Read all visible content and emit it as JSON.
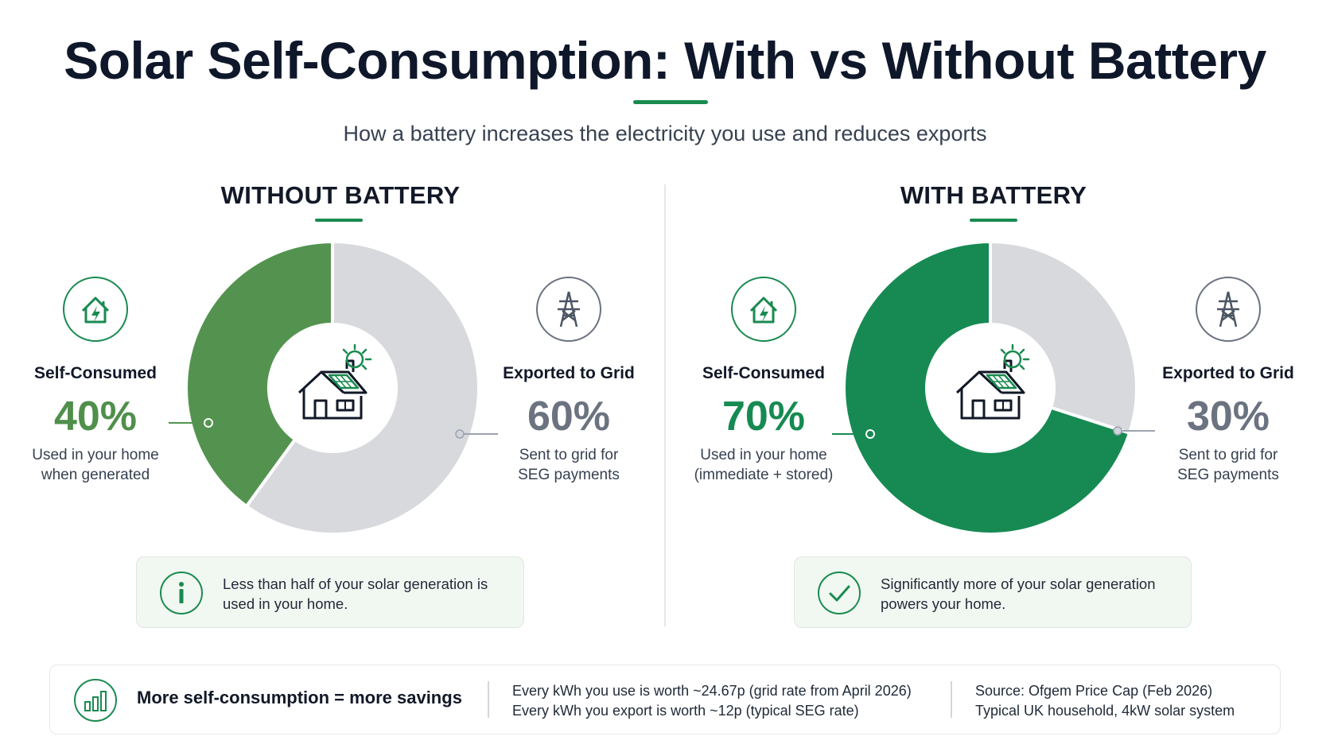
{
  "header": {
    "title": "Solar Self-Consumption: With vs Without Battery",
    "subtitle": "How a battery increases the electricity you use and reduces exports"
  },
  "colors": {
    "self_without": "#53934f",
    "self_with": "#168a52",
    "exported": "#d8d9dc",
    "accent": "#1a8a50",
    "callout_bg": "#f1f7f1"
  },
  "panels": [
    {
      "title": "WITHOUT BATTERY",
      "self_consumed": {
        "label": "Self-Consumed",
        "value": "40%",
        "desc_line1": "Used in your home",
        "desc_line2": "when generated",
        "icon": "house-lightning-icon"
      },
      "exported": {
        "label": "Exported to Grid",
        "value": "60%",
        "desc_line1": "Sent to grid for",
        "desc_line2": "SEG payments",
        "icon": "pylon-icon"
      },
      "callout": {
        "icon": "info-icon",
        "line1": "Less than half of your solar generation is",
        "line2": "used in your home."
      }
    },
    {
      "title": "WITH BATTERY",
      "self_consumed": {
        "label": "Self-Consumed",
        "value": "70%",
        "desc_line1": "Used in your home",
        "desc_line2": "(immediate + stored)",
        "icon": "house-lightning-icon"
      },
      "exported": {
        "label": "Exported to Grid",
        "value": "30%",
        "desc_line1": "Sent to grid for",
        "desc_line2": "SEG payments",
        "icon": "pylon-icon"
      },
      "callout": {
        "icon": "checkmark-icon",
        "line1": "Significantly more of your solar generation",
        "line2": "powers your home."
      }
    }
  ],
  "chart_data": [
    {
      "type": "pie",
      "title": "WITHOUT BATTERY",
      "categories": [
        "Self-Consumed",
        "Exported to Grid"
      ],
      "values": [
        40,
        60
      ],
      "unit": "%",
      "center_icon": "solar-house-icon"
    },
    {
      "type": "pie",
      "title": "WITH BATTERY",
      "categories": [
        "Self-Consumed",
        "Exported to Grid"
      ],
      "values": [
        70,
        30
      ],
      "unit": "%",
      "center_icon": "solar-house-icon"
    }
  ],
  "footer": {
    "icon": "bar-chart-icon",
    "headline": "More self-consumption = more savings",
    "rates_line1": "Every kWh you use is worth ~24.67p (grid rate from April 2026)",
    "rates_line2": "Every kWh you export is worth ~12p (typical SEG rate)",
    "source_line1": "Source: Ofgem Price Cap (Feb 2026)",
    "source_line2": "Typical UK household, 4kW solar system"
  }
}
